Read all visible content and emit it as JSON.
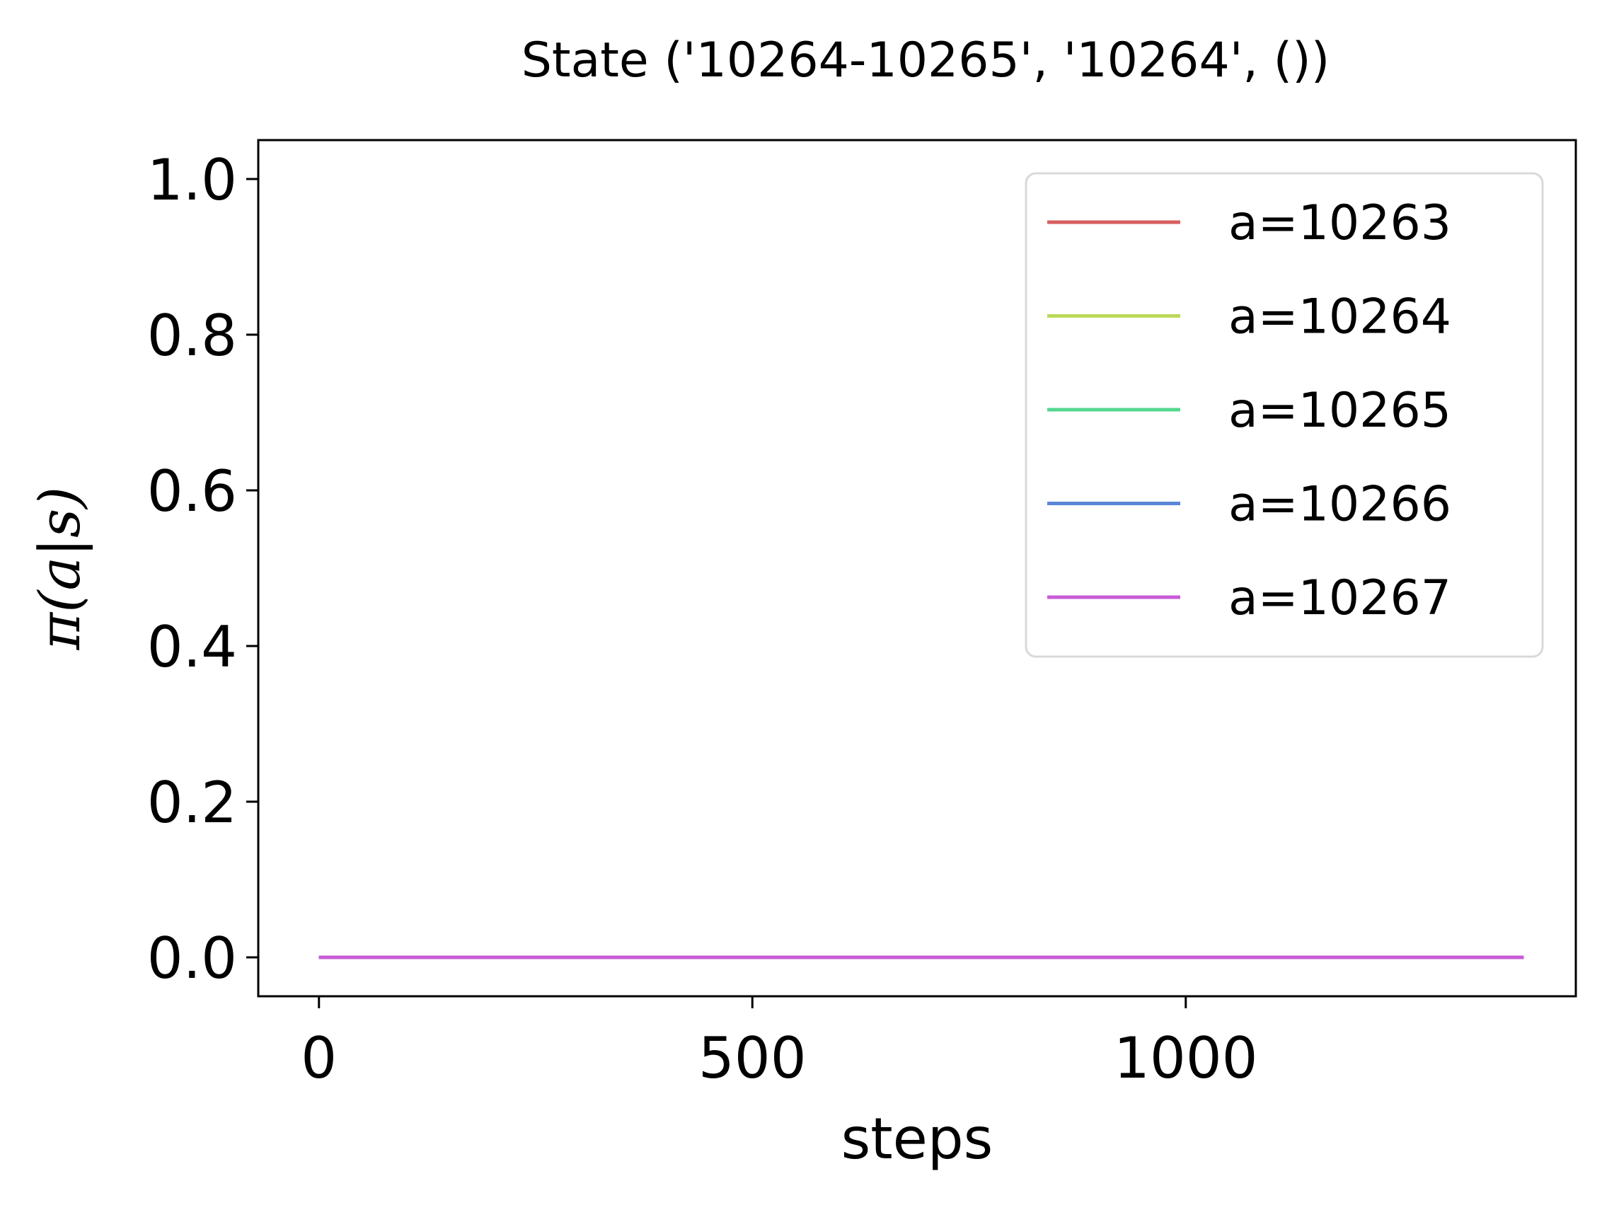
{
  "chart_data": {
    "type": "line",
    "title": "State ('10264-10265', '10264', ())",
    "xlabel": "steps",
    "ylabel": "π(a|s)",
    "xlim": [
      -70,
      1450
    ],
    "ylim": [
      -0.05,
      1.05
    ],
    "xticks": [
      0,
      500,
      1000
    ],
    "xtick_labels": [
      "0",
      "500",
      "1000"
    ],
    "yticks": [
      0.0,
      0.2,
      0.4,
      0.6,
      0.8,
      1.0
    ],
    "ytick_labels": [
      "0.0",
      "0.2",
      "0.4",
      "0.6",
      "0.8",
      "1.0"
    ],
    "grid": false,
    "legend_position": "top-right",
    "x": [
      0,
      1390
    ],
    "series": [
      {
        "name": "a=10263",
        "color": "#d65f5f",
        "values": [
          0.0,
          0.0
        ]
      },
      {
        "name": "a=10264",
        "color": "#bcd95a",
        "values": [
          0.0,
          0.0
        ]
      },
      {
        "name": "a=10265",
        "color": "#55d98f",
        "values": [
          0.0,
          0.0
        ]
      },
      {
        "name": "a=10266",
        "color": "#5a86d6",
        "values": [
          0.0,
          0.0
        ]
      },
      {
        "name": "a=10267",
        "color": "#c85bd6",
        "values": [
          0.0,
          0.0
        ]
      }
    ]
  }
}
